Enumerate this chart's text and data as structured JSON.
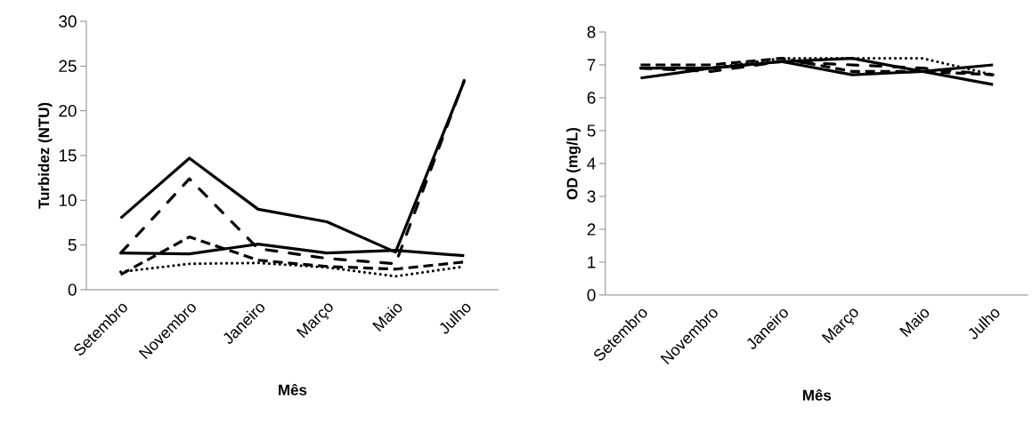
{
  "chart_data": [
    {
      "type": "line",
      "xlabel": "Mês",
      "ylabel": "Turbidez (NTU)",
      "categories": [
        "Setembro",
        "Novembro",
        "Janeiro",
        "Março",
        "Maio",
        "Julho"
      ],
      "ylim": [
        0,
        30
      ],
      "yticks": [
        0,
        5,
        10,
        15,
        20,
        25,
        30
      ],
      "series": [
        {
          "color": "#000000",
          "line_style": "solid",
          "values": [
            8.0,
            14.7,
            9.0,
            7.6,
            4.2,
            23.3
          ]
        },
        {
          "color": "#000000",
          "line_style": "dashdot",
          "values": [
            4.1,
            12.4,
            4.6,
            3.5,
            2.9,
            23.4
          ]
        },
        {
          "color": "#000000",
          "line_style": "dashed",
          "values": [
            1.7,
            5.9,
            3.3,
            2.6,
            2.3,
            3.1
          ]
        },
        {
          "color": "#000000",
          "line_style": "solid",
          "values": [
            4.1,
            4.0,
            5.1,
            4.1,
            4.4,
            3.8
          ]
        },
        {
          "color": "#000000",
          "line_style": "dotted",
          "values": [
            2.0,
            2.9,
            3.0,
            2.5,
            1.5,
            2.6
          ]
        }
      ]
    },
    {
      "type": "line",
      "xlabel": "Mês",
      "ylabel": "OD (mg/L)",
      "categories": [
        "Setembro",
        "Novembro",
        "Janeiro",
        "Março",
        "Maio",
        "Julho"
      ],
      "ylim": [
        0,
        8
      ],
      "yticks": [
        0,
        1,
        2,
        3,
        4,
        5,
        6,
        7,
        8
      ],
      "series": [
        {
          "color": "#000000",
          "line_style": "solid",
          "values": [
            6.6,
            6.9,
            7.1,
            6.7,
            6.8,
            7.0
          ]
        },
        {
          "color": "#000000",
          "line_style": "dashed",
          "values": [
            7.0,
            7.0,
            7.2,
            6.8,
            6.8,
            6.7
          ]
        },
        {
          "color": "#000000",
          "line_style": "dotted",
          "values": [
            6.9,
            6.9,
            7.2,
            7.2,
            7.2,
            6.7
          ]
        },
        {
          "color": "#000000",
          "line_style": "solid",
          "values": [
            6.9,
            6.9,
            7.1,
            7.2,
            6.8,
            6.4
          ]
        },
        {
          "color": "#000000",
          "line_style": "dashdot",
          "values": [
            6.9,
            6.8,
            7.1,
            7.0,
            6.9,
            6.7
          ]
        }
      ]
    }
  ]
}
